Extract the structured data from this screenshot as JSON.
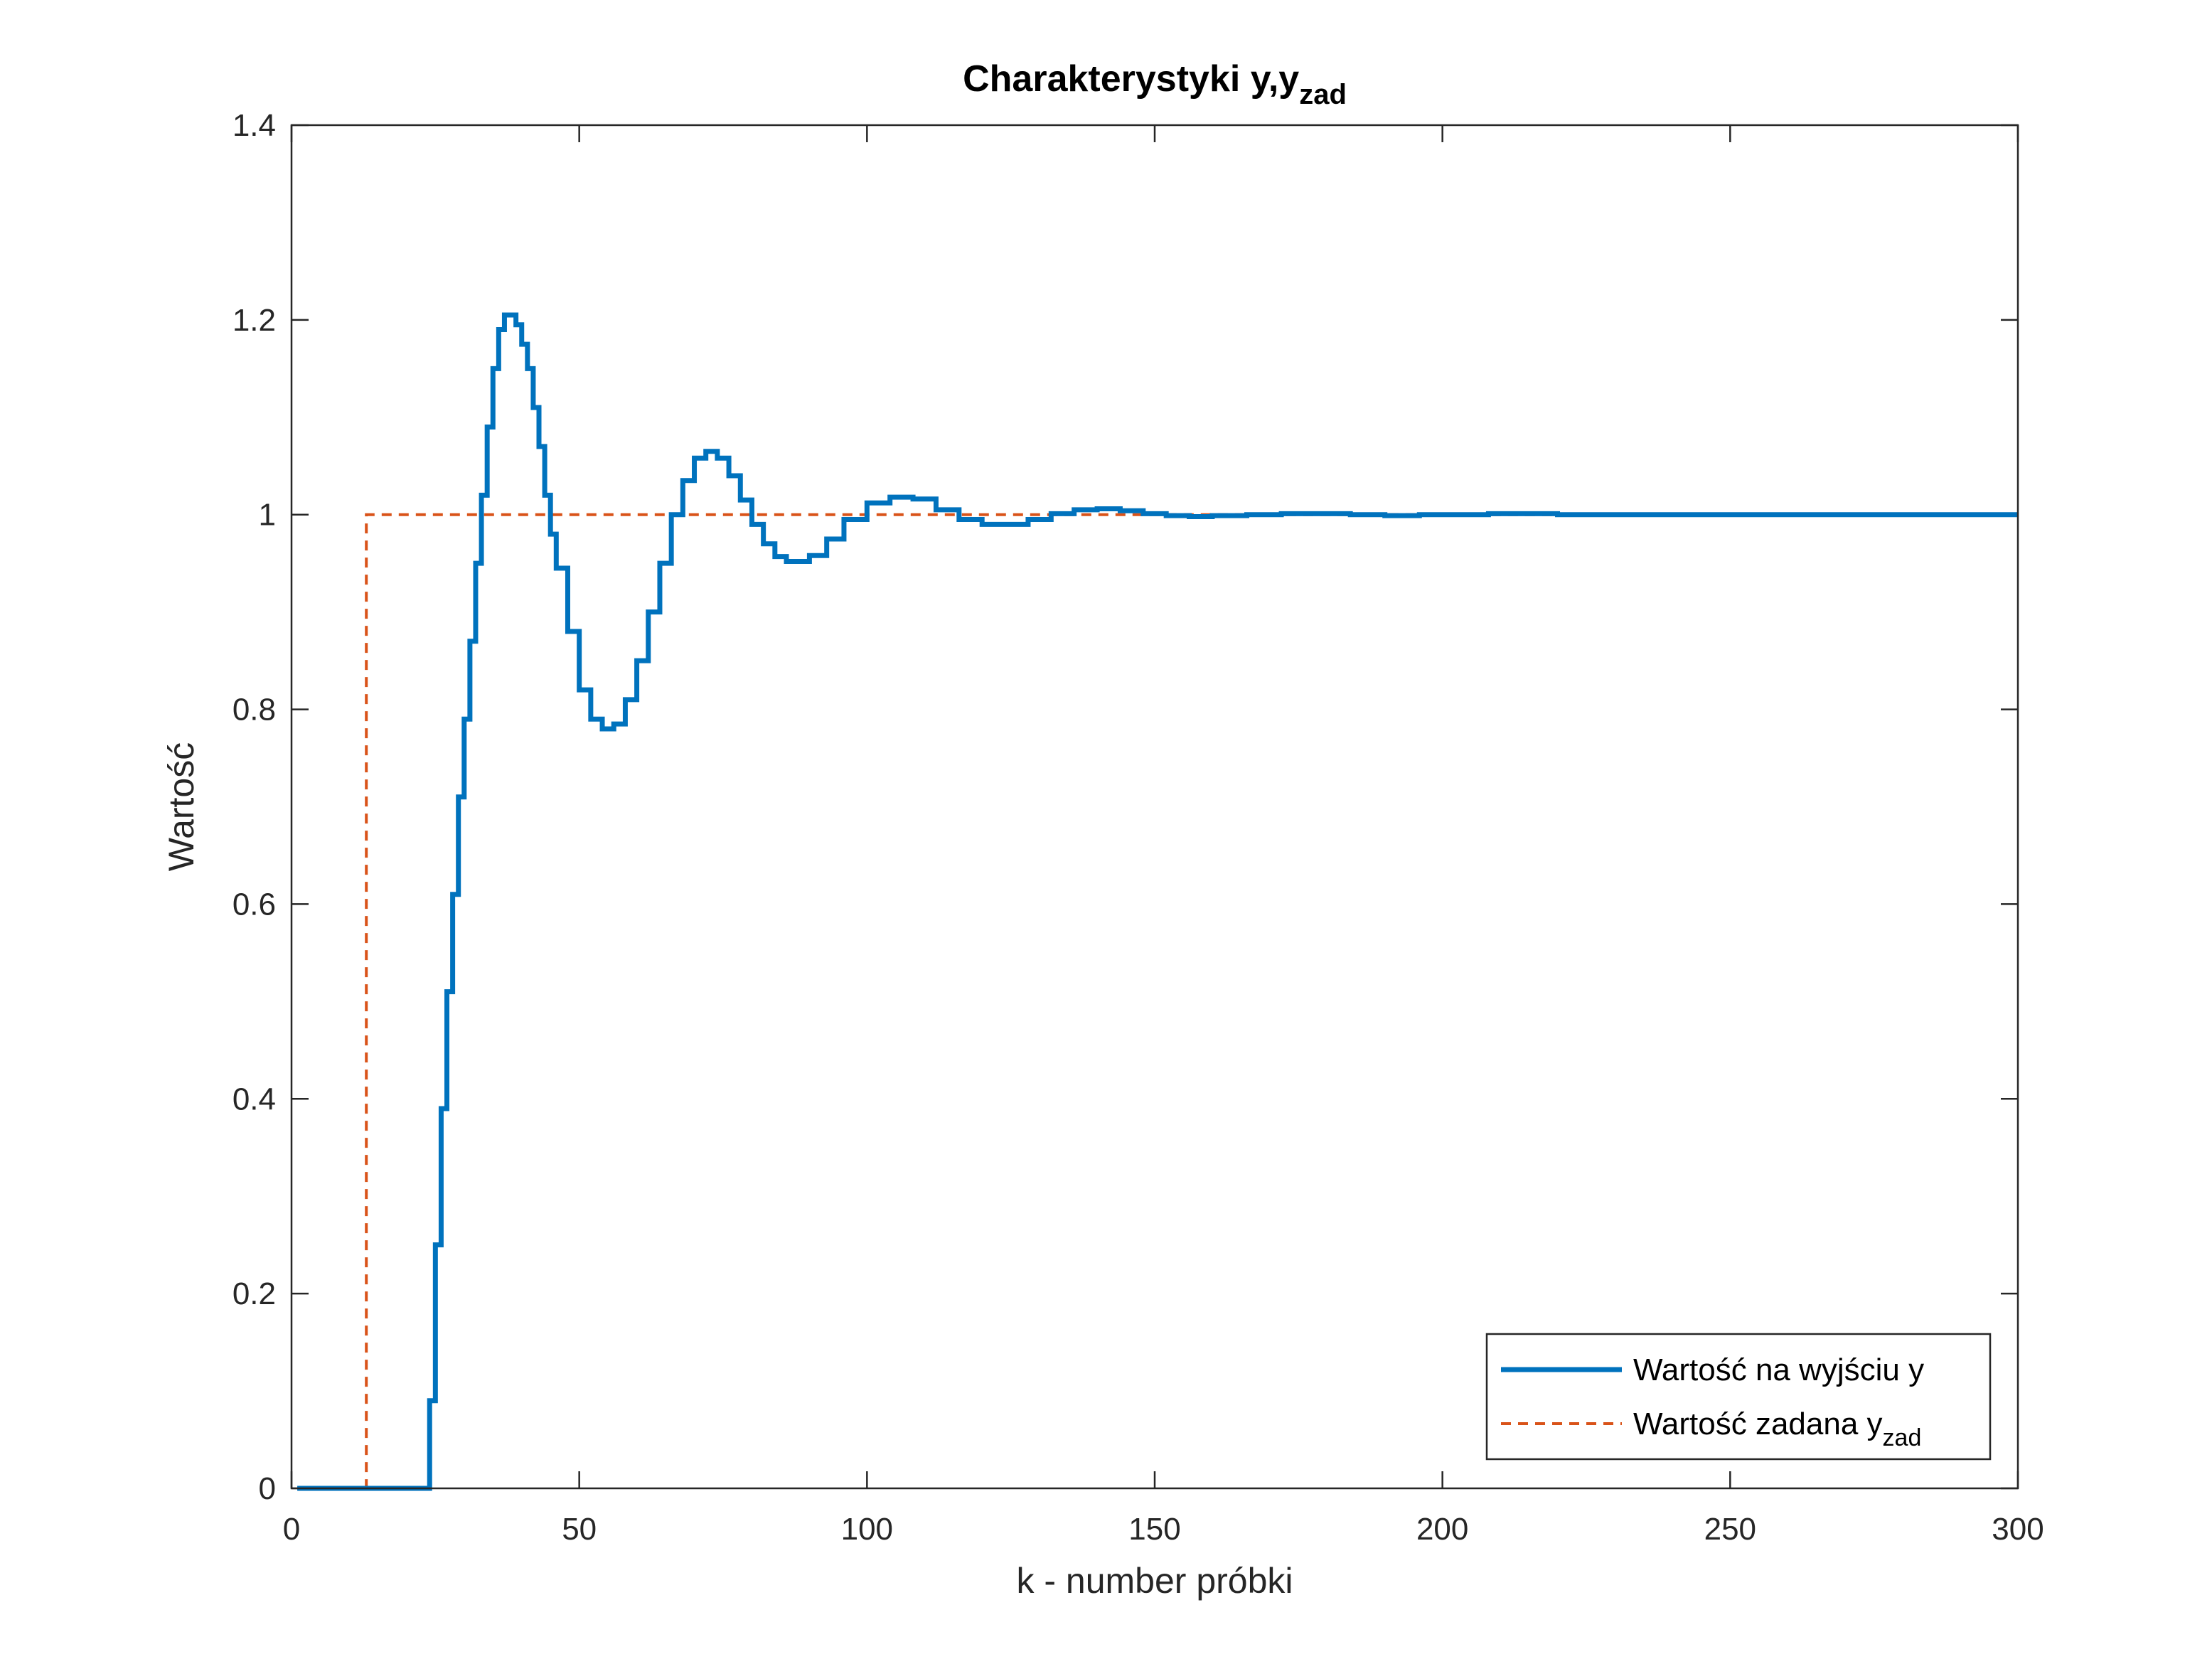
{
  "chart_data": {
    "type": "line",
    "title": "Charakterystyki y,y",
    "title_subscript": "zad",
    "xlabel": "k - number próbki",
    "ylabel": "Wartość",
    "xlim": [
      0,
      300
    ],
    "ylim": [
      0,
      1.4
    ],
    "x_ticks": [
      0,
      50,
      100,
      150,
      200,
      250,
      300
    ],
    "y_ticks": [
      0,
      0.2,
      0.4,
      0.6,
      0.8,
      1,
      1.2,
      1.4
    ],
    "x_tick_labels": [
      "0",
      "50",
      "100",
      "150",
      "200",
      "250",
      "300"
    ],
    "y_tick_labels": [
      "0",
      "0.2",
      "0.4",
      "0.6",
      "0.8",
      "1",
      "1.2",
      "1.4"
    ],
    "grid": false,
    "legend_position": "bottom-right",
    "series": [
      {
        "name": "Wartość na wyjściu y",
        "name_subscript": "",
        "color": "#0072BD",
        "style": "solid-stairs",
        "x": [
          1,
          24,
          25,
          26,
          27,
          28,
          29,
          30,
          31,
          32,
          33,
          34,
          35,
          36,
          37,
          38,
          39,
          40,
          41,
          42,
          43,
          44,
          45,
          46,
          48,
          50,
          52,
          54,
          56,
          58,
          60,
          62,
          64,
          66,
          68,
          70,
          72,
          74,
          76,
          78,
          80,
          82,
          84,
          86,
          88,
          90,
          93,
          96,
          100,
          104,
          108,
          112,
          116,
          120,
          124,
          128,
          132,
          136,
          140,
          144,
          148,
          152,
          156,
          160,
          166,
          172,
          178,
          184,
          190,
          196,
          202,
          208,
          214,
          220,
          230,
          240,
          260,
          280,
          300
        ],
        "y": [
          0,
          0.09,
          0.25,
          0.39,
          0.51,
          0.61,
          0.71,
          0.79,
          0.87,
          0.95,
          1.02,
          1.09,
          1.15,
          1.19,
          1.205,
          1.205,
          1.195,
          1.175,
          1.15,
          1.11,
          1.07,
          1.02,
          0.98,
          0.945,
          0.88,
          0.82,
          0.79,
          0.78,
          0.785,
          0.81,
          0.85,
          0.9,
          0.95,
          1.0,
          1.035,
          1.058,
          1.065,
          1.058,
          1.04,
          1.015,
          0.99,
          0.97,
          0.957,
          0.952,
          0.952,
          0.958,
          0.975,
          0.995,
          1.012,
          1.018,
          1.016,
          1.005,
          0.995,
          0.99,
          0.99,
          0.995,
          1.001,
          1.005,
          1.006,
          1.004,
          1.001,
          0.999,
          0.998,
          0.999,
          1.0,
          1.001,
          1.001,
          1.0,
          0.999,
          1.0,
          1.0,
          1.001,
          1.001,
          1.0,
          1.0,
          1.0,
          1.0,
          1.0,
          1.0
        ]
      },
      {
        "name": "Wartość zadana y",
        "name_subscript": "zad",
        "color": "#D95319",
        "style": "dashed-stairs",
        "x": [
          1,
          13,
          300
        ],
        "y": [
          0,
          1,
          1
        ]
      }
    ]
  }
}
